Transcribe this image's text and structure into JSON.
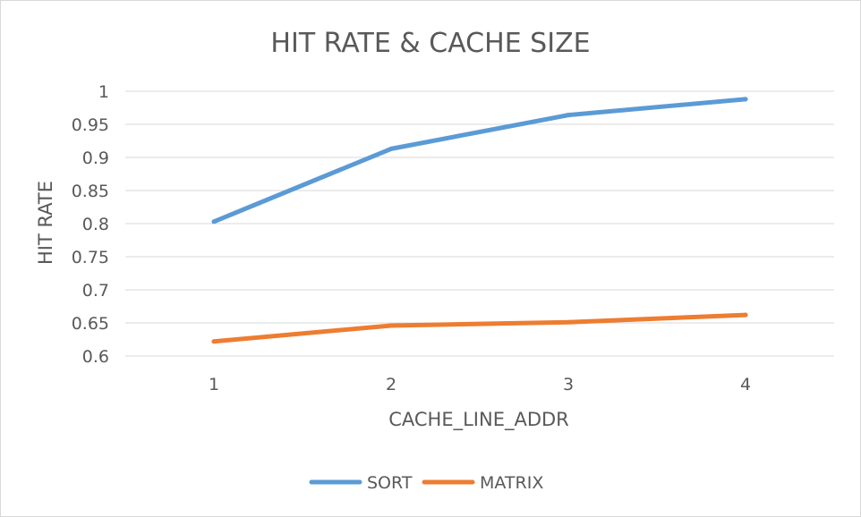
{
  "chart_data": {
    "type": "line",
    "title": "HIT RATE & CACHE SIZE",
    "xlabel": "CACHE_LINE_ADDR",
    "ylabel": "HIT RATE",
    "categories": [
      "1",
      "2",
      "3",
      "4"
    ],
    "ylim": [
      0.6,
      1
    ],
    "yticks": [
      "0.6",
      "0.65",
      "0.7",
      "0.75",
      "0.8",
      "0.85",
      "0.9",
      "0.95",
      "1"
    ],
    "grid": true,
    "legend_position": "bottom",
    "series": [
      {
        "name": "SORT",
        "values": [
          0.803,
          0.913,
          0.964,
          0.988
        ],
        "color": "#5b9bd5"
      },
      {
        "name": "MATRIX",
        "values": [
          0.622,
          0.646,
          0.651,
          0.662
        ],
        "color": "#ed7d31"
      }
    ]
  }
}
